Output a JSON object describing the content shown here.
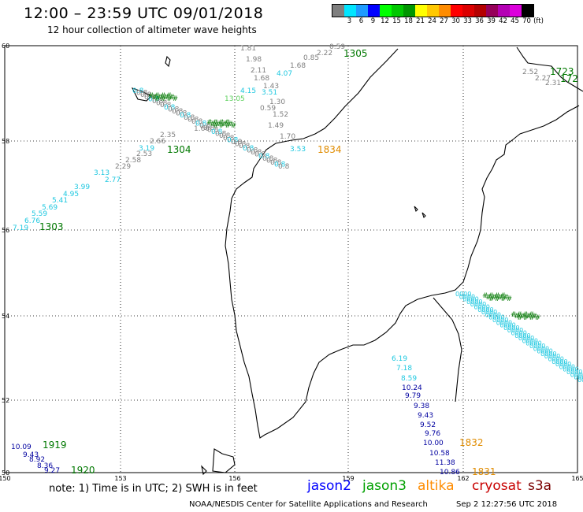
{
  "header": {
    "title": "12:00 – 23:59 UTC 09/01/2018",
    "subtitle": "12 hour collection of altimeter wave heights"
  },
  "colorbar": {
    "colors": [
      "#7f7f7f",
      "#00e5ff",
      "#1e9bff",
      "#0000ff",
      "#00ff00",
      "#00c800",
      "#009600",
      "#ffff00",
      "#ffc800",
      "#ff8c00",
      "#ff0000",
      "#dc0000",
      "#b40000",
      "#96005a",
      "#b400b4",
      "#dc00dc",
      "#000000"
    ],
    "labels": [
      "3",
      "6",
      "9",
      "12",
      "15",
      "18",
      "21",
      "24",
      "27",
      "30",
      "33",
      "36",
      "39",
      "42",
      "45",
      "70",
      "(ft)"
    ]
  },
  "map": {
    "lon_ticks": [
      "150",
      "153",
      "156",
      "159",
      "162",
      "165"
    ],
    "lat_ticks": [
      "60",
      "58",
      "56",
      "54",
      "52",
      "50"
    ],
    "colors": {
      "gray": "#7f7f7f",
      "cyan": "#1fc8e0",
      "navy": "#0000a0",
      "green": "#007800",
      "orange": "#e08c00",
      "blue": "#0000ff",
      "red": "#c80000",
      "coast": "#000000",
      "grid": "#000000"
    }
  },
  "tracks": {
    "track_north_gray": [
      "0.59",
      "2.22",
      "0.85",
      "1.68",
      "1.81",
      "1.98",
      "2.11",
      "1.68",
      "1.43",
      "0.59",
      "1.30",
      "1.52",
      "1.49",
      "1.70"
    ],
    "track_north_cyan": [
      "4.07",
      "4.15",
      "3.51",
      "13.05"
    ],
    "track_north_times": [
      "1305"
    ],
    "track_west": [
      "7.19",
      "6.76",
      "5.59",
      "5.69",
      "5.41",
      "4.95",
      "3.99",
      "3.13",
      "2.77",
      "2.29",
      "2.58",
      "2.53",
      "2.66",
      "2.35",
      "3.19"
    ],
    "track_west_times": [
      "1303",
      "1304"
    ],
    "track_center_labels": [
      "3.53",
      "1834",
      "1.60"
    ],
    "track_east": [
      "6.19",
      "7.18",
      "8.59",
      "10.24",
      "9.79",
      "9.38",
      "9.43",
      "9.52",
      "9.76",
      "10.00",
      "10.58",
      "11.38",
      "10.86"
    ],
    "track_east_times": [
      "1832",
      "1831"
    ],
    "track_sw": [
      "10.09",
      "9.43",
      "8.92",
      "8.36",
      "9.27"
    ],
    "track_sw_times": [
      "1919",
      "1920"
    ],
    "track_ne": [
      "2.52",
      "2.27",
      "2.31"
    ],
    "track_ne_times": [
      "1723",
      "172"
    ]
  },
  "note": "note: 1) Time is in UTC; 2) SWH is in feet",
  "legend": [
    {
      "label": "jason2",
      "color": "#0000ff"
    },
    {
      "label": "jason3",
      "color": "#00a000"
    },
    {
      "label": "altika",
      "color": "#ff8c00"
    },
    {
      "label": "cryosat",
      "color": "#c80000"
    },
    {
      "label": "s3a",
      "color": "#7a0000"
    }
  ],
  "footer": {
    "credit": "NOAA/NESDIS Center for Satellite Applications and Research",
    "timestamp": "Sep  2 12:27:56 UTC 2018"
  }
}
